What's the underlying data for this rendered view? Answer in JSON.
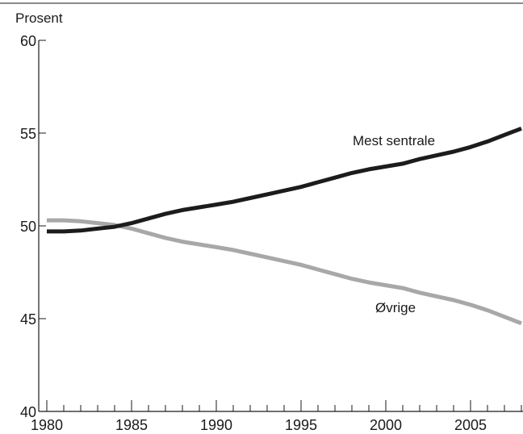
{
  "chart_data": {
    "type": "line",
    "title": "",
    "ylabel": "Prosent",
    "xlabel": "",
    "xlim": [
      1980,
      2008
    ],
    "ylim": [
      40,
      60
    ],
    "x_ticks_labeled": [
      1980,
      1985,
      1990,
      1995,
      2000,
      2005
    ],
    "y_ticks_labeled": [
      40,
      45,
      50,
      55,
      60
    ],
    "grid": false,
    "colors": {
      "Mest sentrale": "#1c1c1c",
      "Øvrige": "#a8a8a8",
      "axis": "#1a1a1a"
    },
    "x": [
      1980,
      1981,
      1982,
      1983,
      1984,
      1985,
      1986,
      1987,
      1988,
      1989,
      1990,
      1991,
      1992,
      1993,
      1994,
      1995,
      1996,
      1997,
      1998,
      1999,
      2000,
      2001,
      2002,
      2003,
      2004,
      2005,
      2006,
      2007,
      2008
    ],
    "series": [
      {
        "name": "Mest sentrale",
        "values": [
          49.7,
          49.7,
          49.75,
          49.85,
          49.95,
          50.15,
          50.4,
          50.65,
          50.85,
          51.0,
          51.15,
          51.3,
          51.5,
          51.7,
          51.9,
          52.1,
          52.35,
          52.6,
          52.85,
          53.05,
          53.2,
          53.35,
          53.6,
          53.8,
          54.0,
          54.25,
          54.55,
          54.9,
          55.25
        ]
      },
      {
        "name": "Øvrige",
        "values": [
          50.3,
          50.3,
          50.25,
          50.15,
          50.05,
          49.85,
          49.6,
          49.35,
          49.15,
          49.0,
          48.85,
          48.7,
          48.5,
          48.3,
          48.1,
          47.9,
          47.65,
          47.4,
          47.15,
          46.95,
          46.8,
          46.65,
          46.4,
          46.2,
          46.0,
          45.75,
          45.45,
          45.1,
          44.75
        ]
      }
    ]
  }
}
